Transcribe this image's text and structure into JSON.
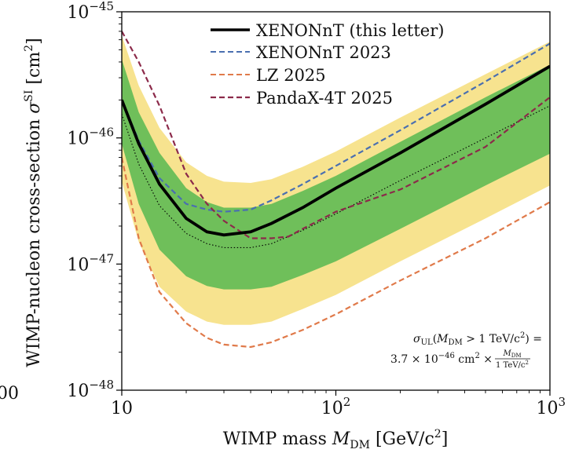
{
  "chart_data": {
    "type": "line",
    "xlabel_main": "WIMP mass ",
    "xlabel_sym": "M",
    "xlabel_sub": "DM",
    "xlabel_unit": " [GeV/c",
    "xlabel_unit_exp": "2",
    "xlabel_close": "]",
    "ylabel_main": "WIMP-nucleon cross-section ",
    "ylabel_sym": "σ",
    "ylabel_sup": "SI",
    "ylabel_unit": " [cm",
    "ylabel_unit_exp": "2",
    "ylabel_close": "]",
    "x_scale": "log",
    "y_scale": "log",
    "xlim": [
      10,
      1000
    ],
    "ylim": [
      1e-48,
      1e-45
    ],
    "x_ticks": [
      {
        "value": 10,
        "base": "10",
        "exp": ""
      },
      {
        "value": 100,
        "base": "10",
        "exp": "2"
      },
      {
        "value": 1000,
        "base": "10",
        "exp": "3"
      }
    ],
    "y_ticks": [
      {
        "value": 1e-48,
        "base": "10",
        "exp": "−48"
      },
      {
        "value": 1e-47,
        "base": "10",
        "exp": "−47"
      },
      {
        "value": 1e-46,
        "base": "10",
        "exp": "−46"
      },
      {
        "value": 1e-45,
        "base": "10",
        "exp": "−45"
      }
    ],
    "partial_tick_text": "00",
    "legend_position": "top-right",
    "series": [
      {
        "name": "XENONnT (this letter)",
        "color": "#000000",
        "style": "solid",
        "x": [
          10,
          12,
          15,
          20,
          25,
          30,
          40,
          50,
          70,
          100,
          200,
          500,
          1000
        ],
        "y": [
          2e-46,
          9e-47,
          4.3e-47,
          2.3e-47,
          1.8e-47,
          1.7e-47,
          1.8e-47,
          2.1e-47,
          2.8e-47,
          4e-47,
          7.6e-47,
          1.85e-46,
          3.7e-46
        ]
      },
      {
        "name": "XENONnT 2023",
        "color": "#4a6fb0",
        "style": "dashed",
        "x": [
          10,
          12,
          15,
          20,
          25,
          30,
          40,
          50,
          70,
          100,
          200,
          500,
          1000
        ],
        "y": [
          2e-46,
          9.5e-47,
          4.8e-47,
          3e-47,
          2.7e-47,
          2.6e-47,
          2.7e-47,
          3.2e-47,
          4.3e-47,
          6e-47,
          1.15e-46,
          2.8e-46,
          5.6e-46
        ]
      },
      {
        "name": "LZ 2025",
        "color": "#e07a4a",
        "style": "dashed",
        "x": [
          10,
          12,
          15,
          20,
          25,
          30,
          40,
          50,
          70,
          100,
          200,
          500,
          1000
        ],
        "y": [
          7e-47,
          1.6e-47,
          6e-48,
          3.4e-48,
          2.6e-48,
          2.3e-48,
          2.2e-48,
          2.4e-48,
          3e-48,
          4e-48,
          7.4e-48,
          1.6e-47,
          3.1e-47
        ]
      },
      {
        "name": "PandaX-4T 2025",
        "color": "#8c2a4a",
        "style": "dashed",
        "x": [
          10,
          12,
          15,
          20,
          25,
          30,
          40,
          50,
          60,
          70,
          100,
          150,
          200,
          300,
          500,
          1000
        ],
        "y": [
          7e-46,
          4e-46,
          1.8e-46,
          5.2e-47,
          3e-47,
          2.2e-47,
          1.6e-47,
          1.6e-47,
          1.65e-47,
          1.9e-47,
          2.6e-47,
          3.3e-47,
          3.9e-47,
          5.5e-47,
          8.5e-47,
          2.1e-46
        ]
      }
    ],
    "median": {
      "x": [
        10,
        12,
        15,
        20,
        25,
        30,
        40,
        50,
        70,
        100,
        200,
        500,
        1000
      ],
      "y": [
        1.55e-46,
        6.2e-47,
        2.9e-47,
        1.75e-47,
        1.45e-47,
        1.35e-47,
        1.35e-47,
        1.45e-47,
        1.85e-47,
        2.5e-47,
        4.6e-47,
        1e-46,
        1.8e-46
      ]
    },
    "band_1sigma": {
      "x": [
        10,
        12,
        15,
        20,
        25,
        30,
        40,
        50,
        70,
        100,
        200,
        500,
        1000
      ],
      "lower": [
        9e-47,
        3e-47,
        1.3e-47,
        8e-48,
        6.7e-48,
        6.3e-48,
        6.3e-48,
        6.6e-48,
        8.2e-48,
        1.05e-47,
        1.9e-47,
        4.2e-47,
        7.5e-47
      ],
      "upper": [
        4.2e-46,
        1.6e-46,
        7.6e-47,
        4e-47,
        3.1e-47,
        2.8e-47,
        2.8e-47,
        3e-47,
        3.8e-47,
        5e-47,
        9.3e-47,
        2.1e-46,
        3.8e-46
      ]
    },
    "band_2sigma": {
      "x": [
        10,
        12,
        15,
        20,
        25,
        30,
        40,
        50,
        70,
        100,
        200,
        500,
        1000
      ],
      "lower": [
        4.5e-47,
        1.5e-47,
        6.6e-48,
        4.2e-48,
        3.5e-48,
        3.3e-48,
        3.3e-48,
        3.5e-48,
        4.4e-48,
        5.7e-48,
        1.05e-47,
        2.3e-47,
        4.2e-47
      ],
      "upper": [
        6.5e-46,
        2.6e-46,
        1.2e-46,
        6.4e-47,
        5e-47,
        4.5e-47,
        4.4e-47,
        4.7e-47,
        5.9e-47,
        7.8e-47,
        1.45e-46,
        3.2e-46,
        5.8e-46
      ]
    },
    "band_colors": {
      "one_sigma": "#6fbf5a",
      "two_sigma": "#f7e38f"
    },
    "annotation": {
      "line1_lhs": "σ",
      "line1_lhs_sub": "UL",
      "line1_paren_open": "(",
      "line1_M": "M",
      "line1_M_sub": "DM",
      "line1_cond": " > 1 TeV/c",
      "line1_cond_exp": "2",
      "line1_close": ") =",
      "line2_coef": "3.7 × 10",
      "line2_exp": "−46",
      "line2_unit": " cm",
      "line2_unit_exp": "2",
      "line2_times": " × ",
      "frac_num": "M",
      "frac_num_sub": "DM",
      "frac_den": "1 TeV/c",
      "frac_den_exp": "2"
    }
  }
}
